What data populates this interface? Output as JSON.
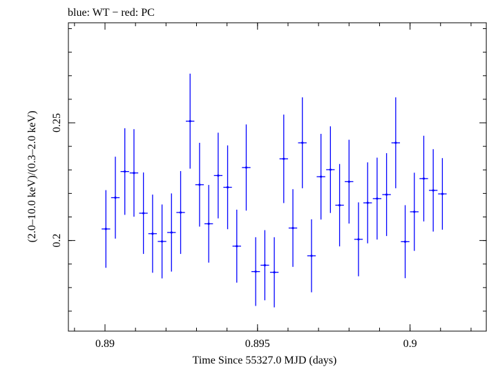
{
  "chart_data": {
    "type": "scatter",
    "title": "blue: WT − red: PC",
    "xlabel": "Time Since 55327.0 MJD (days)",
    "ylabel": "(2.0–10.0 keV)/(0.3–2.0 keV)",
    "xlim": [
      0.8888,
      0.9025
    ],
    "ylim": [
      0.1615,
      0.2925
    ],
    "x_ticks": [
      {
        "value": 0.89,
        "label": "0.89"
      },
      {
        "value": 0.895,
        "label": "0.895"
      },
      {
        "value": 0.9,
        "label": "0.9"
      }
    ],
    "y_ticks": [
      {
        "value": 0.2,
        "label": "0.2"
      },
      {
        "value": 0.25,
        "label": "0.25"
      }
    ],
    "x_minor_step": 0.001,
    "y_minor_step": 0.01,
    "grid": false,
    "series": [
      {
        "color": "#0000ff",
        "x_halfwidth": 0.00014,
        "points": [
          {
            "x": 0.89003,
            "y": 0.2049,
            "err": 0.0165
          },
          {
            "x": 0.89034,
            "y": 0.2182,
            "err": 0.0174
          },
          {
            "x": 0.89065,
            "y": 0.2293,
            "err": 0.0184
          },
          {
            "x": 0.89095,
            "y": 0.2287,
            "err": 0.0186
          },
          {
            "x": 0.89126,
            "y": 0.2116,
            "err": 0.0173
          },
          {
            "x": 0.89156,
            "y": 0.2029,
            "err": 0.0166
          },
          {
            "x": 0.89187,
            "y": 0.1996,
            "err": 0.0157
          },
          {
            "x": 0.89218,
            "y": 0.2034,
            "err": 0.0166
          },
          {
            "x": 0.89248,
            "y": 0.2119,
            "err": 0.0176
          },
          {
            "x": 0.89279,
            "y": 0.2507,
            "err": 0.0202
          },
          {
            "x": 0.8931,
            "y": 0.2237,
            "err": 0.0178
          },
          {
            "x": 0.8934,
            "y": 0.2071,
            "err": 0.0165
          },
          {
            "x": 0.89371,
            "y": 0.2276,
            "err": 0.0182
          },
          {
            "x": 0.89402,
            "y": 0.2226,
            "err": 0.0178
          },
          {
            "x": 0.89432,
            "y": 0.1976,
            "err": 0.0155
          },
          {
            "x": 0.89463,
            "y": 0.231,
            "err": 0.0183
          },
          {
            "x": 0.89494,
            "y": 0.1868,
            "err": 0.0146
          },
          {
            "x": 0.89524,
            "y": 0.1895,
            "err": 0.0149
          },
          {
            "x": 0.89555,
            "y": 0.1865,
            "err": 0.0149
          },
          {
            "x": 0.89586,
            "y": 0.2347,
            "err": 0.0188
          },
          {
            "x": 0.89616,
            "y": 0.2053,
            "err": 0.0165
          },
          {
            "x": 0.89647,
            "y": 0.2415,
            "err": 0.0193
          },
          {
            "x": 0.89677,
            "y": 0.1935,
            "err": 0.0155
          },
          {
            "x": 0.89708,
            "y": 0.2271,
            "err": 0.0182
          },
          {
            "x": 0.89739,
            "y": 0.2301,
            "err": 0.0184
          },
          {
            "x": 0.89769,
            "y": 0.215,
            "err": 0.0175
          },
          {
            "x": 0.898,
            "y": 0.225,
            "err": 0.0178
          },
          {
            "x": 0.89831,
            "y": 0.2005,
            "err": 0.0157
          },
          {
            "x": 0.89861,
            "y": 0.216,
            "err": 0.0172
          },
          {
            "x": 0.89892,
            "y": 0.2178,
            "err": 0.0174
          },
          {
            "x": 0.89923,
            "y": 0.2195,
            "err": 0.0176
          },
          {
            "x": 0.89953,
            "y": 0.2415,
            "err": 0.0193
          },
          {
            "x": 0.89984,
            "y": 0.1995,
            "err": 0.0155
          },
          {
            "x": 0.90014,
            "y": 0.2122,
            "err": 0.0166
          },
          {
            "x": 0.90045,
            "y": 0.2263,
            "err": 0.0182
          },
          {
            "x": 0.90076,
            "y": 0.2213,
            "err": 0.0175
          },
          {
            "x": 0.90106,
            "y": 0.2198,
            "err": 0.0152
          }
        ]
      }
    ]
  }
}
